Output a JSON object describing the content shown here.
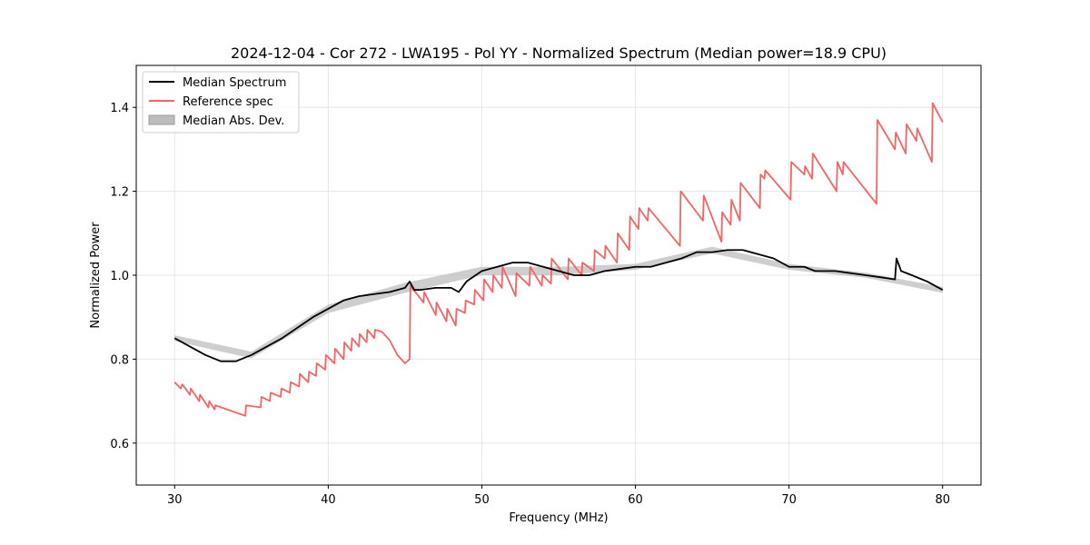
{
  "chart_data": {
    "type": "line",
    "title": "2024-12-04 - Cor 272 - LWA195 - Pol YY - Normalized Spectrum (Median power=18.9 CPU)",
    "xlabel": "Frequency (MHz)",
    "ylabel": "Normalized Power",
    "xlim": [
      27.5,
      82.5
    ],
    "ylim": [
      0.5,
      1.5
    ],
    "xticks": [
      30,
      40,
      50,
      60,
      70,
      80
    ],
    "yticks": [
      0.6,
      0.8,
      1.0,
      1.2,
      1.4
    ],
    "xtick_labels": [
      "30",
      "40",
      "50",
      "60",
      "70",
      "80"
    ],
    "ytick_labels": [
      "0.6",
      "0.8",
      "1.0",
      "1.2",
      "1.4"
    ],
    "grid": true,
    "legend_position": "top-left",
    "legend": [
      "Median Spectrum",
      "Reference spec",
      "Median Abs. Dev."
    ],
    "colors": {
      "median": "#000000",
      "reference": "#f46464",
      "mad": "#bdbdbd"
    },
    "series": [
      {
        "name": "Median Spectrum",
        "x": [
          30,
          31,
          32,
          33,
          34,
          35,
          36,
          37,
          38,
          39,
          40,
          41,
          42,
          43,
          44,
          45,
          45.3,
          45.6,
          46,
          47,
          48,
          48.5,
          49,
          50,
          51,
          52,
          53,
          54,
          55,
          56,
          57,
          58,
          59,
          60,
          61,
          62,
          63,
          64,
          65,
          66,
          67,
          68,
          69,
          70,
          71,
          71.7,
          72,
          73,
          74,
          75,
          76,
          76.9,
          77,
          77.3,
          78,
          79,
          80
        ],
        "values": [
          0.85,
          0.83,
          0.81,
          0.795,
          0.795,
          0.81,
          0.83,
          0.85,
          0.875,
          0.9,
          0.92,
          0.94,
          0.95,
          0.955,
          0.96,
          0.97,
          0.985,
          0.965,
          0.965,
          0.97,
          0.97,
          0.96,
          0.985,
          1.01,
          1.02,
          1.03,
          1.03,
          1.02,
          1.01,
          1.0,
          1.0,
          1.01,
          1.015,
          1.02,
          1.02,
          1.03,
          1.04,
          1.055,
          1.055,
          1.06,
          1.06,
          1.05,
          1.04,
          1.02,
          1.02,
          1.01,
          1.01,
          1.01,
          1.005,
          1.0,
          0.995,
          0.99,
          1.04,
          1.01,
          1.0,
          0.985,
          0.965
        ]
      },
      {
        "name": "Median Abs. Dev.",
        "x": [
          30,
          35,
          40,
          45,
          50,
          55,
          60,
          65,
          70,
          75,
          80
        ],
        "lower": [
          0.843,
          0.802,
          0.91,
          0.958,
          1.0,
          1.0,
          1.013,
          1.052,
          1.013,
          0.994,
          0.958
        ],
        "upper": [
          0.857,
          0.818,
          0.93,
          0.982,
          1.02,
          1.02,
          1.027,
          1.068,
          1.027,
          1.006,
          0.972
        ]
      },
      {
        "name": "Reference spec",
        "x": [
          30,
          30.4,
          30.5,
          31,
          31.05,
          31.6,
          31.65,
          32.2,
          32.25,
          32.6,
          32.65,
          34.6,
          34.65,
          35.6,
          35.65,
          36.2,
          36.25,
          36.9,
          36.95,
          37.5,
          37.55,
          38.1,
          38.15,
          38.7,
          38.75,
          39.2,
          39.25,
          39.8,
          39.85,
          40.4,
          40.45,
          41,
          41.05,
          41.5,
          41.55,
          42,
          42.05,
          42.5,
          42.55,
          43,
          43.05,
          43.5,
          44,
          44.5,
          45,
          45.3,
          45.35,
          46.2,
          46.25,
          47,
          47.05,
          47.7,
          47.75,
          48.3,
          48.35,
          48.9,
          48.95,
          49.5,
          49.55,
          50.1,
          50.15,
          50.7,
          50.75,
          51.3,
          51.35,
          52.2,
          52.25,
          53.1,
          53.15,
          53.9,
          53.95,
          54.5,
          54.55,
          55.6,
          55.65,
          56.5,
          56.55,
          57.3,
          57.35,
          58,
          58.05,
          58.8,
          58.85,
          59.6,
          59.65,
          60.2,
          60.25,
          60.8,
          60.85,
          62.9,
          62.95,
          64.4,
          64.45,
          65.6,
          65.65,
          66.2,
          66.25,
          66.8,
          66.85,
          68.1,
          68.15,
          68.4,
          68.45,
          70.1,
          70.15,
          71,
          71.05,
          71.5,
          71.55,
          73.1,
          73.15,
          73.5,
          73.55,
          75.7,
          75.75,
          76.9,
          76.95,
          77.6,
          77.65,
          78.3,
          78.35,
          79.3,
          79.35,
          80
        ],
        "values": [
          0.745,
          0.73,
          0.74,
          0.715,
          0.73,
          0.7,
          0.715,
          0.685,
          0.7,
          0.68,
          0.69,
          0.665,
          0.69,
          0.685,
          0.71,
          0.7,
          0.72,
          0.71,
          0.73,
          0.72,
          0.745,
          0.735,
          0.765,
          0.745,
          0.77,
          0.76,
          0.79,
          0.775,
          0.81,
          0.79,
          0.825,
          0.8,
          0.84,
          0.82,
          0.85,
          0.83,
          0.86,
          0.84,
          0.87,
          0.85,
          0.87,
          0.865,
          0.845,
          0.81,
          0.79,
          0.8,
          0.975,
          0.935,
          0.96,
          0.905,
          0.935,
          0.89,
          0.92,
          0.88,
          0.92,
          0.91,
          0.94,
          0.93,
          0.965,
          0.94,
          0.99,
          0.96,
          1.0,
          0.97,
          1.02,
          0.95,
          1.005,
          0.975,
          1.02,
          0.975,
          1.0,
          0.98,
          1.04,
          0.99,
          1.04,
          1.0,
          1.03,
          1.01,
          1.06,
          1.04,
          1.07,
          1.03,
          1.1,
          1.06,
          1.14,
          1.11,
          1.16,
          1.13,
          1.16,
          1.07,
          1.2,
          1.13,
          1.19,
          1.08,
          1.15,
          1.12,
          1.18,
          1.13,
          1.22,
          1.16,
          1.24,
          1.23,
          1.25,
          1.18,
          1.27,
          1.24,
          1.26,
          1.23,
          1.29,
          1.2,
          1.27,
          1.24,
          1.27,
          1.17,
          1.37,
          1.3,
          1.34,
          1.29,
          1.36,
          1.32,
          1.35,
          1.27,
          1.41,
          1.365
        ]
      }
    ]
  }
}
